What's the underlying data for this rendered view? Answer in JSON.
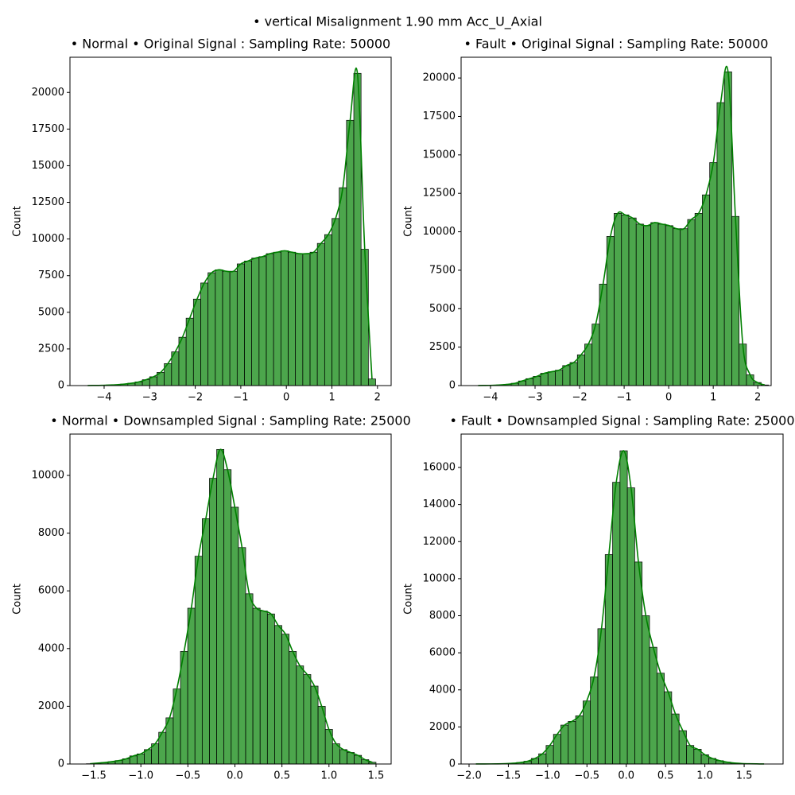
{
  "title": "• vertical Misalignment 1.90 mm Acc_U_Axial",
  "chart_data": [
    {
      "type": "histogram",
      "title": "• Normal • Original Signal : Sampling Rate: 50000",
      "ylabel": "Count",
      "color": "#008000",
      "kde": true,
      "bins": [
        -4.44,
        -4.28,
        -4.12,
        -3.96,
        -3.8,
        -3.64,
        -3.48,
        -3.32,
        -3.16,
        -3.0,
        -2.84,
        -2.68,
        -2.52,
        -2.36,
        -2.2,
        -2.04,
        -1.88,
        -1.72,
        -1.56,
        -1.4,
        -1.24,
        -1.08,
        -0.92,
        -0.76,
        -0.6,
        -0.44,
        -0.28,
        -0.12,
        0.04,
        0.2,
        0.36,
        0.52,
        0.68,
        0.84,
        1.0,
        1.16,
        1.32,
        1.48,
        1.64,
        1.8,
        1.96
      ],
      "values": [
        5,
        10,
        20,
        40,
        60,
        100,
        160,
        250,
        400,
        600,
        900,
        1500,
        2300,
        3300,
        4600,
        5900,
        7000,
        7700,
        7900,
        7800,
        7800,
        8300,
        8500,
        8700,
        8800,
        9000,
        9100,
        9200,
        9100,
        9000,
        9000,
        9100,
        9700,
        10300,
        11400,
        13500,
        18100,
        21300,
        9300,
        450
      ],
      "xlim": [
        -4.75,
        2.3
      ],
      "ylim": [
        0,
        22400
      ],
      "xticks": [
        {
          "value": -4,
          "label": "−4"
        },
        {
          "value": -3,
          "label": "−3"
        },
        {
          "value": -2,
          "label": "−2"
        },
        {
          "value": -1,
          "label": "−1"
        },
        0,
        1,
        2
      ],
      "yticks": [
        0,
        2500,
        5000,
        7500,
        10000,
        12500,
        15000,
        17500,
        20000
      ]
    },
    {
      "type": "histogram",
      "title": "• Fault • Original Signal : Sampling Rate: 50000",
      "ylabel": "Count",
      "color": "#008000",
      "kde": true,
      "bins": [
        -4.36,
        -4.195,
        -4.03,
        -3.865,
        -3.7,
        -3.535,
        -3.37,
        -3.205,
        -3.04,
        -2.875,
        -2.71,
        -2.545,
        -2.38,
        -2.215,
        -2.05,
        -1.885,
        -1.72,
        -1.555,
        -1.39,
        -1.225,
        -1.06,
        -0.895,
        -0.73,
        -0.565,
        -0.4,
        -0.235,
        -0.07,
        0.095,
        0.26,
        0.425,
        0.59,
        0.755,
        0.92,
        1.085,
        1.25,
        1.415,
        1.58,
        1.745,
        1.91,
        2.075,
        2.24
      ],
      "values": [
        5,
        10,
        20,
        40,
        80,
        150,
        300,
        450,
        600,
        800,
        900,
        1000,
        1300,
        1500,
        2000,
        2700,
        4000,
        6600,
        9700,
        11200,
        11100,
        10900,
        10500,
        10400,
        10600,
        10500,
        10400,
        10200,
        10200,
        10800,
        11200,
        12400,
        14500,
        18400,
        20400,
        11000,
        2700,
        700,
        200,
        40
      ],
      "xlim": [
        -4.66,
        2.3
      ],
      "ylim": [
        0,
        21350
      ],
      "xticks": [
        {
          "value": -4,
          "label": "−4"
        },
        {
          "value": -3,
          "label": "−3"
        },
        {
          "value": -2,
          "label": "−2"
        },
        {
          "value": -1,
          "label": "−1"
        },
        0,
        1,
        2
      ],
      "yticks": [
        0,
        2500,
        5000,
        7500,
        10000,
        12500,
        15000,
        17500,
        20000
      ]
    },
    {
      "type": "histogram",
      "title": "• Normal • Downsampled Signal : Sampling Rate: 25000",
      "ylabel": "Count",
      "color": "#008000",
      "kde": true,
      "bins": [
        -1.58,
        -1.503,
        -1.426,
        -1.349,
        -1.272,
        -1.195,
        -1.118,
        -1.041,
        -0.964,
        -0.887,
        -0.81,
        -0.733,
        -0.656,
        -0.579,
        -0.502,
        -0.425,
        -0.348,
        -0.271,
        -0.194,
        -0.117,
        -0.04,
        0.037,
        0.114,
        0.191,
        0.268,
        0.345,
        0.422,
        0.499,
        0.576,
        0.653,
        0.73,
        0.807,
        0.884,
        0.961,
        1.038,
        1.115,
        1.192,
        1.269,
        1.346,
        1.423,
        1.5
      ],
      "values": [
        10,
        30,
        50,
        80,
        120,
        180,
        280,
        350,
        500,
        700,
        1100,
        1600,
        2600,
        3900,
        5400,
        7200,
        8500,
        9900,
        10900,
        10200,
        8900,
        7500,
        5900,
        5400,
        5300,
        5200,
        4800,
        4500,
        3900,
        3400,
        3100,
        2700,
        2000,
        1200,
        700,
        500,
        400,
        300,
        150,
        60
      ],
      "xlim": [
        -1.754,
        1.661
      ],
      "ylim": [
        0,
        11433
      ],
      "xticks": [
        {
          "value": -1.5,
          "label": "−1.5"
        },
        {
          "value": -1,
          "label": "−1.0"
        },
        {
          "value": -0.5,
          "label": "−0.5"
        },
        {
          "value": 0,
          "label": "0.0"
        },
        0.5,
        {
          "value": 1,
          "label": "1.0"
        },
        1.5
      ],
      "yticks": [
        0,
        2000,
        4000,
        6000,
        8000,
        10000
      ]
    },
    {
      "type": "histogram",
      "title": "• Fault • Downsampled Signal : Sampling Rate: 25000",
      "ylabel": "Count",
      "color": "#008000",
      "kde": true,
      "bins": [
        -1.96,
        -1.866,
        -1.772,
        -1.678,
        -1.584,
        -1.49,
        -1.396,
        -1.302,
        -1.208,
        -1.114,
        -1.02,
        -0.926,
        -0.832,
        -0.738,
        -0.644,
        -0.55,
        -0.456,
        -0.362,
        -0.268,
        -0.174,
        -0.08,
        0.014,
        0.108,
        0.202,
        0.296,
        0.39,
        0.484,
        0.578,
        0.672,
        0.766,
        0.86,
        0.954,
        1.048,
        1.142,
        1.236,
        1.33,
        1.424,
        1.518,
        1.612,
        1.706,
        1.8
      ],
      "values": [
        2,
        3,
        5,
        10,
        20,
        40,
        80,
        150,
        300,
        550,
        1000,
        1600,
        2100,
        2300,
        2600,
        3400,
        4700,
        7300,
        11300,
        15200,
        16900,
        14900,
        10900,
        8000,
        6300,
        4900,
        3900,
        2700,
        1800,
        1000,
        800,
        500,
        300,
        180,
        100,
        50,
        25,
        12,
        6,
        3
      ],
      "xlim": [
        -2.101,
        1.995
      ],
      "ylim": [
        0,
        17802
      ],
      "xticks": [
        {
          "value": -2,
          "label": "−2.0"
        },
        {
          "value": -1.5,
          "label": "−1.5"
        },
        {
          "value": -1,
          "label": "−1.0"
        },
        {
          "value": -0.5,
          "label": "−0.5"
        },
        {
          "value": 0,
          "label": "0.0"
        },
        0.5,
        {
          "value": 1,
          "label": "1.0"
        },
        1.5
      ],
      "yticks": [
        0,
        2000,
        4000,
        6000,
        8000,
        10000,
        12000,
        14000,
        16000
      ]
    }
  ]
}
